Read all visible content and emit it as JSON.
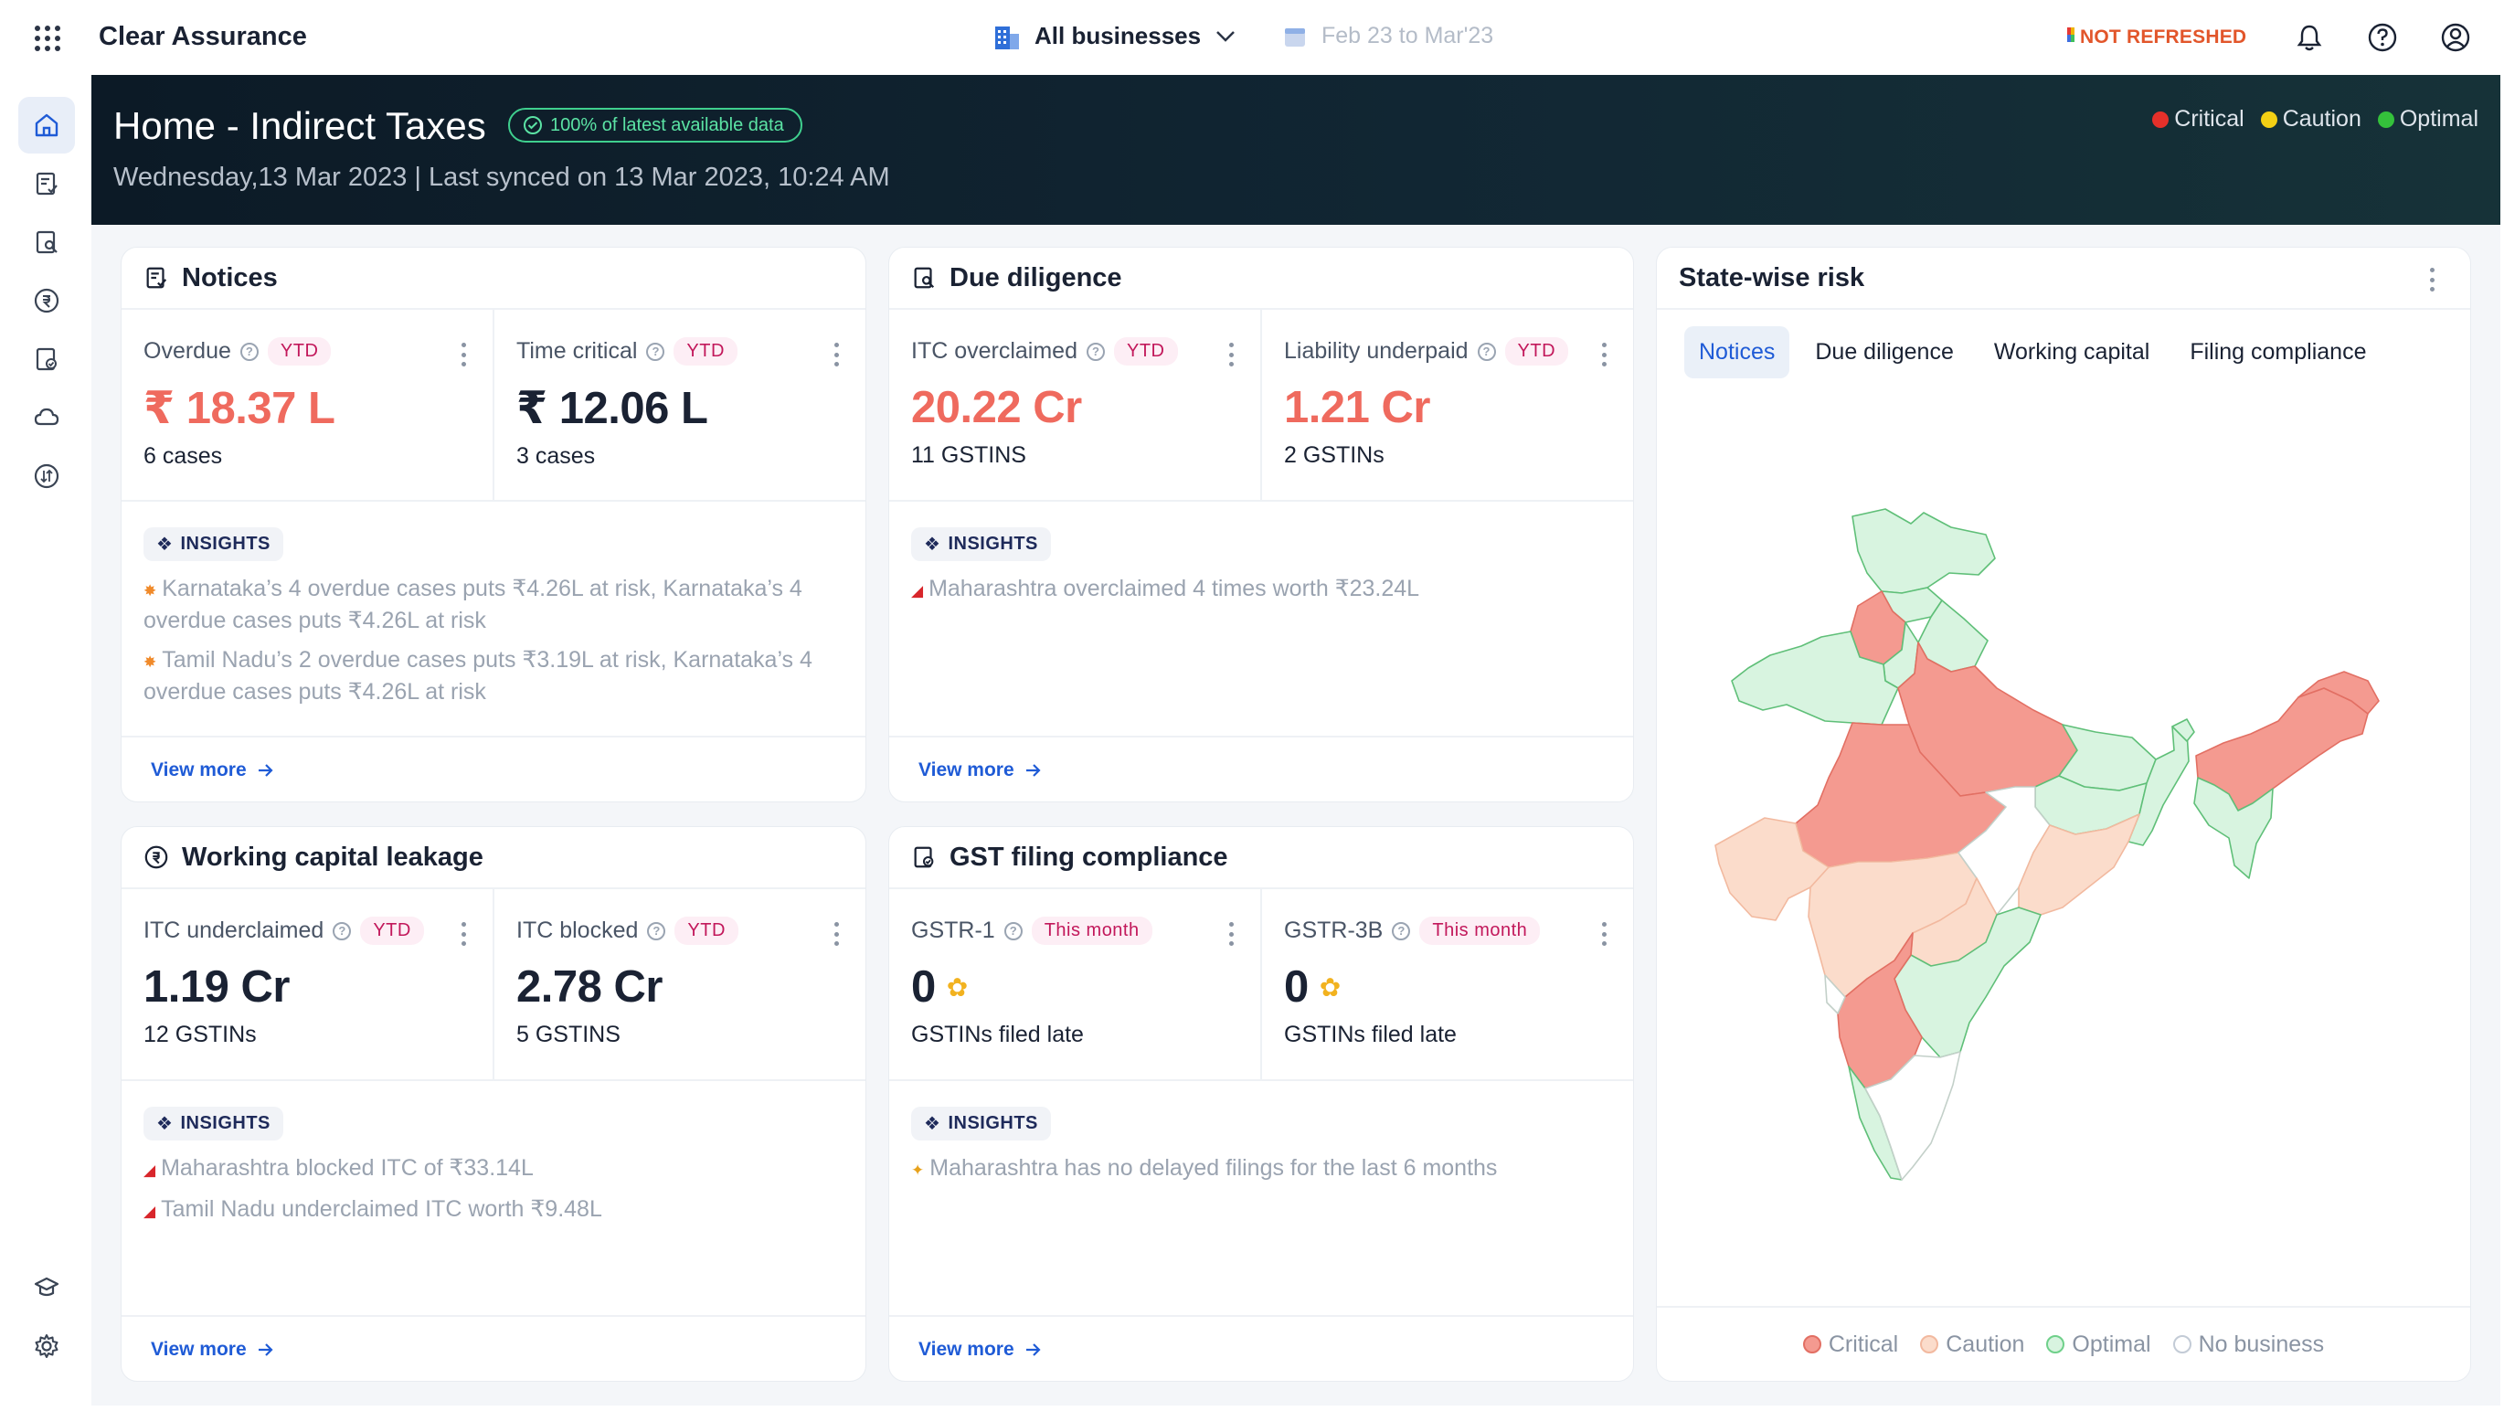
{
  "topbar": {
    "app_title": "Clear Assurance",
    "business_select": "All businesses",
    "date_range": "Feb 23 to Mar'23",
    "refresh_status": "NOT REFRESHED",
    "icons": [
      "apps-grid-icon",
      "building-icon",
      "chevron-down-icon",
      "calendar-icon",
      "bell-icon",
      "help-icon",
      "profile-icon"
    ]
  },
  "sidebar": {
    "items": [
      "home",
      "notices",
      "due-diligence",
      "working-capital",
      "gst-filing",
      "cloud",
      "reconciliation",
      "learn",
      "settings"
    ]
  },
  "hero": {
    "title": "Home - Indirect Taxes",
    "data_status": "100% of latest available data",
    "subtitle": "Wednesday,13 Mar 2023 | Last synced on 13 Mar 2023, 10:24 AM",
    "legend": [
      {
        "label": "Critical",
        "color": "#e5302a"
      },
      {
        "label": "Caution",
        "color": "#f3d014"
      },
      {
        "label": "Optimal",
        "color": "#34c13b"
      }
    ]
  },
  "colors": {
    "critical_region": "#f49a90",
    "caution_region": "#fbdccb",
    "optimal_region": "#d8f4e0",
    "no_business_region": "#ffffff",
    "accent": "#1f5bd6"
  },
  "notices": {
    "title": "Notices",
    "kpi1": {
      "label": "Overdue",
      "badge": "YTD",
      "value": "₹ 18.37 L",
      "sub": "6 cases"
    },
    "kpi2": {
      "label": "Time critical",
      "badge": "YTD",
      "value": "₹ 12.06 L",
      "sub": "3 cases"
    },
    "insights_label": "INSIGHTS",
    "insights": [
      "Karnataka’s 4 overdue cases puts ₹4.26L at risk, Karnataka’s 4 overdue cases puts ₹4.26L at risk",
      "Tamil Nadu’s 2 overdue cases puts ₹3.19L at risk, Karnataka’s 4 overdue cases puts ₹4.26L at risk"
    ],
    "view_more": "View more"
  },
  "due_diligence": {
    "title": "Due diligence",
    "kpi1": {
      "label": "ITC overclaimed",
      "badge": "YTD",
      "value": "20.22 Cr",
      "sub": "11 GSTINS"
    },
    "kpi2": {
      "label": "Liability underpaid",
      "badge": "YTD",
      "value": "1.21 Cr",
      "sub": "2 GSTINs"
    },
    "insights_label": "INSIGHTS",
    "insights": [
      "Maharashtra overclaimed 4 times worth ₹23.24L"
    ],
    "view_more": "View more"
  },
  "working_capital": {
    "title": "Working capital leakage",
    "kpi1": {
      "label": "ITC underclaimed",
      "badge": "YTD",
      "value": "1.19 Cr",
      "sub": "12 GSTINs"
    },
    "kpi2": {
      "label": "ITC blocked",
      "badge": "YTD",
      "value": "2.78 Cr",
      "sub": "5 GSTINS"
    },
    "insights_label": "INSIGHTS",
    "insights": [
      "Maharashtra blocked ITC of ₹33.14L",
      "Tamil Nadu underclaimed ITC worth ₹9.48L"
    ],
    "view_more": "View more"
  },
  "gst_filing": {
    "title": "GST filing compliance",
    "kpi1": {
      "label": "GSTR-1",
      "badge": "This month",
      "value": "0",
      "sub": "GSTINs filed late"
    },
    "kpi2": {
      "label": "GSTR-3B",
      "badge": "This month",
      "value": "0",
      "sub": "GSTINs filed late"
    },
    "insights_label": "INSIGHTS",
    "insights": [
      "Maharashtra has no delayed filings for the last 6 months"
    ],
    "view_more": "View more"
  },
  "state_risk": {
    "title": "State-wise risk",
    "tabs": [
      "Notices",
      "Due diligence",
      "Working capital",
      "Filing compliance"
    ],
    "active_tab": "Notices",
    "legend": [
      "Critical",
      "Caution",
      "Optimal",
      "No business"
    ]
  }
}
